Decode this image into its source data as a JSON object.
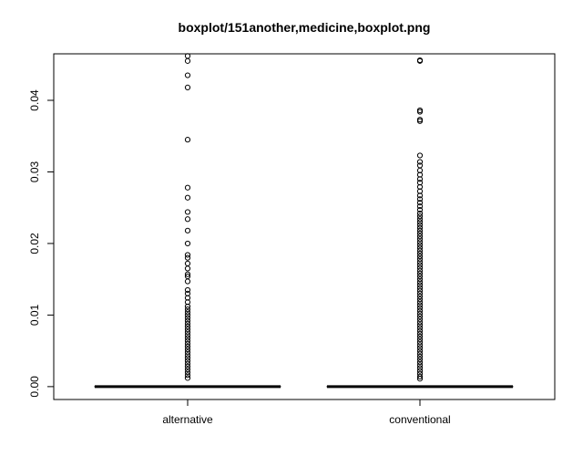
{
  "chart_data": {
    "type": "boxplot",
    "title": "boxplot/151another,medicine,boxplot.png",
    "xlabel": "",
    "ylabel": "",
    "ylim": [
      -0.0018,
      0.0465
    ],
    "yticks": [
      0.0,
      0.01,
      0.02,
      0.03,
      0.04
    ],
    "ytick_labels": [
      "0.00",
      "0.01",
      "0.02",
      "0.03",
      "0.04"
    ],
    "grid": false,
    "categories": [
      "alternative",
      "conventional"
    ],
    "boxes": [
      {
        "category": "alternative",
        "min": 0.0,
        "q1": 0.0,
        "median": 0.0,
        "q3": 0.0,
        "max": 0.0
      },
      {
        "category": "conventional",
        "min": 0.0,
        "q1": 0.0,
        "median": 0.0,
        "q3": 0.0,
        "max": 0.0
      }
    ],
    "outliers": [
      {
        "category": "alternative",
        "values": [
          0.0462,
          0.0455,
          0.0435,
          0.0418,
          0.0345,
          0.0278,
          0.0264,
          0.0244,
          0.0234,
          0.0218,
          0.02,
          0.0184,
          0.018,
          0.0172,
          0.0165,
          0.0157,
          0.0154,
          0.0147,
          0.0135,
          0.013,
          0.0124,
          0.0118,
          0.0112,
          0.0108,
          0.0104,
          0.01,
          0.0096,
          0.0092,
          0.0088,
          0.0084,
          0.008,
          0.0076,
          0.0072,
          0.0068,
          0.0064,
          0.006,
          0.0056,
          0.0052,
          0.0048,
          0.0044,
          0.004,
          0.0036,
          0.0032,
          0.0028,
          0.0024,
          0.002,
          0.0016,
          0.0012
        ]
      },
      {
        "category": "conventional",
        "values": [
          0.0456,
          0.0455,
          0.0386,
          0.0384,
          0.0373,
          0.0371,
          0.0323,
          0.0314,
          0.0309,
          0.0302,
          0.0296,
          0.029,
          0.0285,
          0.0279,
          0.0273,
          0.0267,
          0.0262,
          0.0257,
          0.0252,
          0.0247,
          0.0242,
          0.0238,
          0.0234,
          0.023,
          0.0226,
          0.0222,
          0.0218,
          0.0214,
          0.021,
          0.0206,
          0.0202,
          0.0198,
          0.0194,
          0.019,
          0.0186,
          0.0182,
          0.0178,
          0.0174,
          0.017,
          0.0166,
          0.0162,
          0.0158,
          0.0154,
          0.015,
          0.0146,
          0.0142,
          0.0138,
          0.0134,
          0.013,
          0.0126,
          0.0122,
          0.0118,
          0.0114,
          0.011,
          0.0106,
          0.0102,
          0.0098,
          0.0094,
          0.009,
          0.0086,
          0.0082,
          0.0078,
          0.0074,
          0.007,
          0.0066,
          0.0062,
          0.0058,
          0.0054,
          0.005,
          0.0046,
          0.0042,
          0.0038,
          0.0034,
          0.003,
          0.0026,
          0.0022,
          0.0018,
          0.0014,
          0.0011
        ]
      }
    ],
    "colors": {
      "box_line": "#000000",
      "outlier": "#000000",
      "axis": "#000000",
      "background": "#ffffff"
    }
  }
}
